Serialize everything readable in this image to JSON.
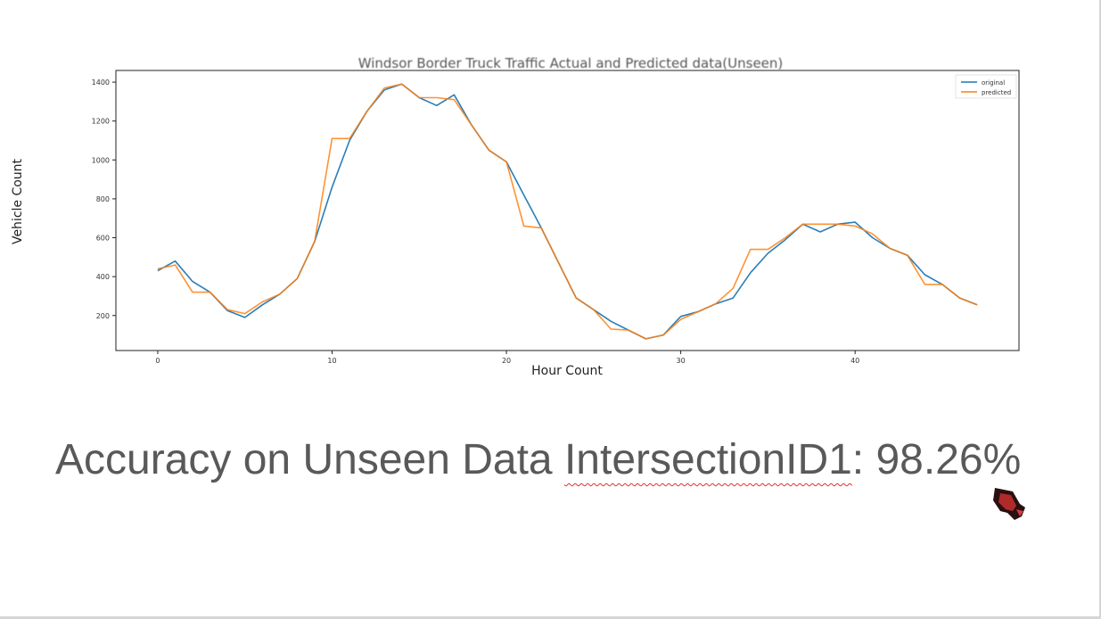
{
  "chart_data": {
    "type": "line",
    "title": "Windsor Border Truck Traffic Actual and Predicted data(Unseen)",
    "xlabel": "Hour Count",
    "ylabel": "Vehicle Count",
    "xlim": [
      -2.4,
      49.4
    ],
    "ylim": [
      20,
      1460
    ],
    "xticks": [
      0,
      10,
      20,
      30,
      40
    ],
    "yticks": [
      200,
      400,
      600,
      800,
      1000,
      1200,
      1400
    ],
    "legend_position": "top-right",
    "x": [
      0,
      1,
      2,
      3,
      4,
      5,
      6,
      7,
      8,
      9,
      10,
      11,
      12,
      13,
      14,
      15,
      16,
      17,
      18,
      19,
      20,
      21,
      22,
      23,
      24,
      25,
      26,
      27,
      28,
      29,
      30,
      31,
      32,
      33,
      34,
      35,
      36,
      37,
      38,
      39,
      40,
      41,
      42,
      43,
      44,
      45,
      46,
      47
    ],
    "series": [
      {
        "name": "original",
        "color": "#1f77b4",
        "values": [
          430,
          480,
          375,
          320,
          225,
          190,
          255,
          310,
          390,
          580,
          860,
          1100,
          1250,
          1360,
          1390,
          1320,
          1280,
          1335,
          1180,
          1050,
          990,
          820,
          650,
          470,
          290,
          230,
          170,
          125,
          80,
          100,
          195,
          220,
          260,
          290,
          420,
          520,
          590,
          670,
          630,
          670,
          680,
          600,
          545,
          510,
          410,
          360,
          290,
          255
        ]
      },
      {
        "name": "predicted",
        "color": "#ff7f0e",
        "values": [
          440,
          460,
          320,
          320,
          230,
          210,
          270,
          310,
          390,
          580,
          1110,
          1110,
          1250,
          1370,
          1390,
          1320,
          1320,
          1310,
          1180,
          1050,
          990,
          660,
          650,
          470,
          290,
          230,
          130,
          125,
          80,
          100,
          180,
          220,
          260,
          340,
          540,
          540,
          600,
          670,
          670,
          670,
          660,
          620,
          545,
          510,
          360,
          360,
          290,
          255
        ]
      }
    ]
  },
  "caption": {
    "prefix": "Accuracy on Unseen Data ",
    "term": "IntersectionID1",
    "suffix": ": 98.26%"
  },
  "cursor_icon": "highlighter-cursor-icon"
}
